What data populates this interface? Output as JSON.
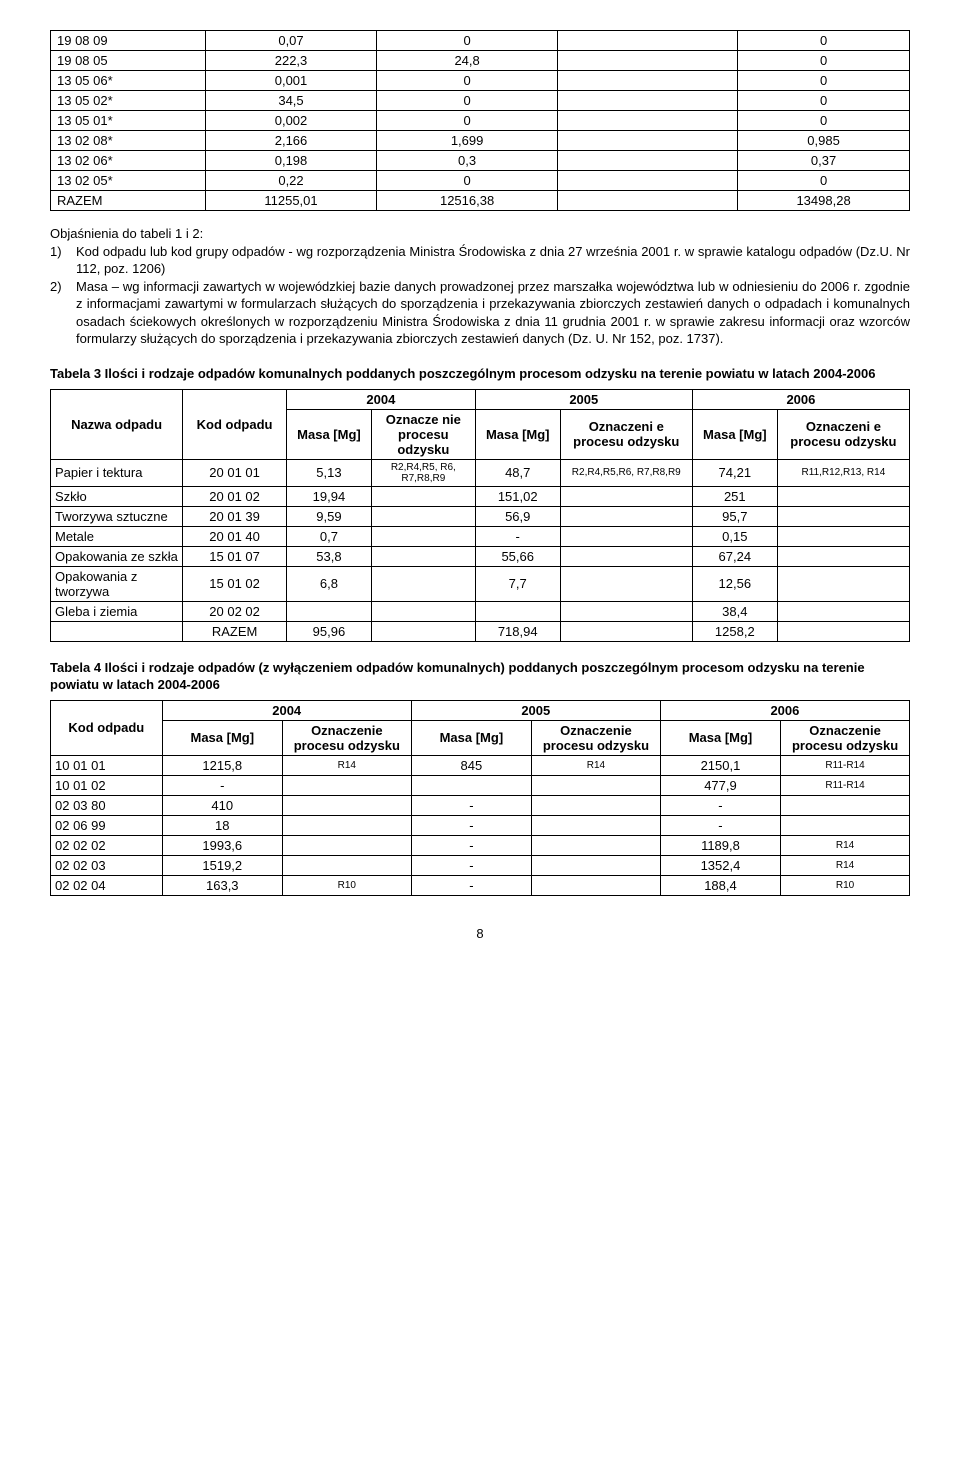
{
  "table1": {
    "col_widths_pct": [
      18,
      20,
      21,
      21,
      20
    ],
    "rows": [
      [
        "19 08 09",
        "0,07",
        "0",
        "",
        "0"
      ],
      [
        "19 08 05",
        "222,3",
        "24,8",
        "",
        "0"
      ],
      [
        "13 05 06*",
        "0,001",
        "0",
        "",
        "0"
      ],
      [
        "13 05 02*",
        "34,5",
        "0",
        "",
        "0"
      ],
      [
        "13 05 01*",
        "0,002",
        "0",
        "",
        "0"
      ],
      [
        "13 02 08*",
        "2,166",
        "1,699",
        "",
        "0,985"
      ],
      [
        "13 02 06*",
        "0,198",
        "0,3",
        "",
        "0,37"
      ],
      [
        "13 02 05*",
        "0,22",
        "0",
        "",
        "0"
      ],
      [
        "RAZEM",
        "11255,01",
        "12516,38",
        "",
        "13498,28"
      ]
    ]
  },
  "paragraph": {
    "heading": "Objaśnienia do tabeli 1 i 2:",
    "item1_num": "1)",
    "item1": "Kod odpadu lub kod grupy odpadów  - wg rozporządzenia Ministra Środowiska z dnia 27 września 2001 r. w sprawie katalogu odpadów (Dz.U. Nr 112, poz. 1206)",
    "item2_num": "2)",
    "item2": "Masa – wg informacji zawartych w wojewódzkiej bazie danych prowadzonej przez marszałka województwa lub w odniesieniu do 2006 r. zgodnie z informacjami zawartymi w formularzach służących do sporządzenia i przekazywania zbiorczych zestawień danych o odpadach i komunalnych osadach ściekowych określonych w rozporządzeniu Ministra Środowiska z dnia 11 grudnia 2001 r. w sprawie zakresu informacji oraz wzorców formularzy służących do sporządzenia i przekazywania zbiorczych zestawień danych (Dz. U. Nr 152, poz. 1737)."
  },
  "table3": {
    "caption": "Tabela 3 Ilości i rodzaje odpadów komunalnych poddanych poszczególnym procesom odzysku na terenie powiatu w latach 2004-2006",
    "year_headers": [
      "2004",
      "2005",
      "2006"
    ],
    "col_headers": {
      "nazwa": "Nazwa odpadu",
      "kod": "Kod odpadu",
      "masa": "Masa [Mg]",
      "ozn_short": "Oznacze nie procesu odzysku",
      "ozn": "Oznaczeni e procesu odzysku"
    },
    "rows": [
      {
        "nazwa": "Papier i tektura",
        "kod": "20 01 01",
        "m04": "5,13",
        "o04": "R2,R4,R5, R6, R7,R8,R9",
        "m05": "48,7",
        "o05": "R2,R4,R5,R6, R7,R8,R9",
        "m06": "74,21",
        "o06": "R11,R12,R13, R14"
      },
      {
        "nazwa": "Szkło",
        "kod": "20 01 02",
        "m04": "19,94",
        "o04": "",
        "m05": "151,02",
        "o05": "",
        "m06": "251",
        "o06": ""
      },
      {
        "nazwa": "Tworzywa sztuczne",
        "kod": "20 01 39",
        "m04": "9,59",
        "o04": "",
        "m05": "56,9",
        "o05": "",
        "m06": "95,7",
        "o06": ""
      },
      {
        "nazwa": "Metale",
        "kod": "20 01 40",
        "m04": "0,7",
        "o04": "",
        "m05": "-",
        "o05": "",
        "m06": "0,15",
        "o06": ""
      },
      {
        "nazwa": "Opakowania ze szkła",
        "kod": "15 01 07",
        "m04": "53,8",
        "o04": "",
        "m05": "55,66",
        "o05": "",
        "m06": "67,24",
        "o06": ""
      },
      {
        "nazwa": "Opakowania z tworzywa",
        "kod": "15 01 02",
        "m04": "6,8",
        "o04": "",
        "m05": "7,7",
        "o05": "",
        "m06": "12,56",
        "o06": ""
      },
      {
        "nazwa": "Gleba i ziemia",
        "kod": "20 02 02",
        "m04": "",
        "o04": "",
        "m05": "",
        "o05": "",
        "m06": "38,4",
        "o06": ""
      }
    ],
    "total": {
      "label": "RAZEM",
      "m04": "95,96",
      "m05": "718,94",
      "m06": "1258,2"
    }
  },
  "table4": {
    "caption": "Tabela 4 Ilości i rodzaje odpadów (z wyłączeniem odpadów komunalnych) poddanych poszczególnym procesom odzysku na terenie powiatu w latach 2004-2006",
    "year_headers": [
      "2004",
      "2005",
      "2006"
    ],
    "col_headers": {
      "kod": "Kod odpadu",
      "masa": "Masa [Mg]",
      "ozn": "Oznaczenie procesu odzysku"
    },
    "rows": [
      {
        "kod": "10 01 01",
        "m04": "1215,8",
        "o04": "R14",
        "m05": "845",
        "o05": "R14",
        "m06": "2150,1",
        "o06": "R11-R14"
      },
      {
        "kod": "10 01 02",
        "m04": "-",
        "o04": "",
        "m05": "",
        "o05": "",
        "m06": "477,9",
        "o06": "R11-R14"
      },
      {
        "kod": "02 03 80",
        "m04": "410",
        "o04": "",
        "m05": "-",
        "o05": "",
        "m06": "-",
        "o06": ""
      },
      {
        "kod": "02 06 99",
        "m04": "18",
        "o04": "",
        "m05": "-",
        "o05": "",
        "m06": "-",
        "o06": ""
      },
      {
        "kod": "02 02 02",
        "m04": "1993,6",
        "o04": "",
        "m05": "-",
        "o05": "",
        "m06": "1189,8",
        "o06": "R14"
      },
      {
        "kod": "02 02 03",
        "m04": "1519,2",
        "o04": "",
        "m05": "-",
        "o05": "",
        "m06": "1352,4",
        "o06": "R14"
      },
      {
        "kod": "02 02 04",
        "m04": "163,3",
        "o04": "R10",
        "m05": "-",
        "o05": "",
        "m06": "188,4",
        "o06": "R10"
      }
    ]
  },
  "page_number": "8"
}
